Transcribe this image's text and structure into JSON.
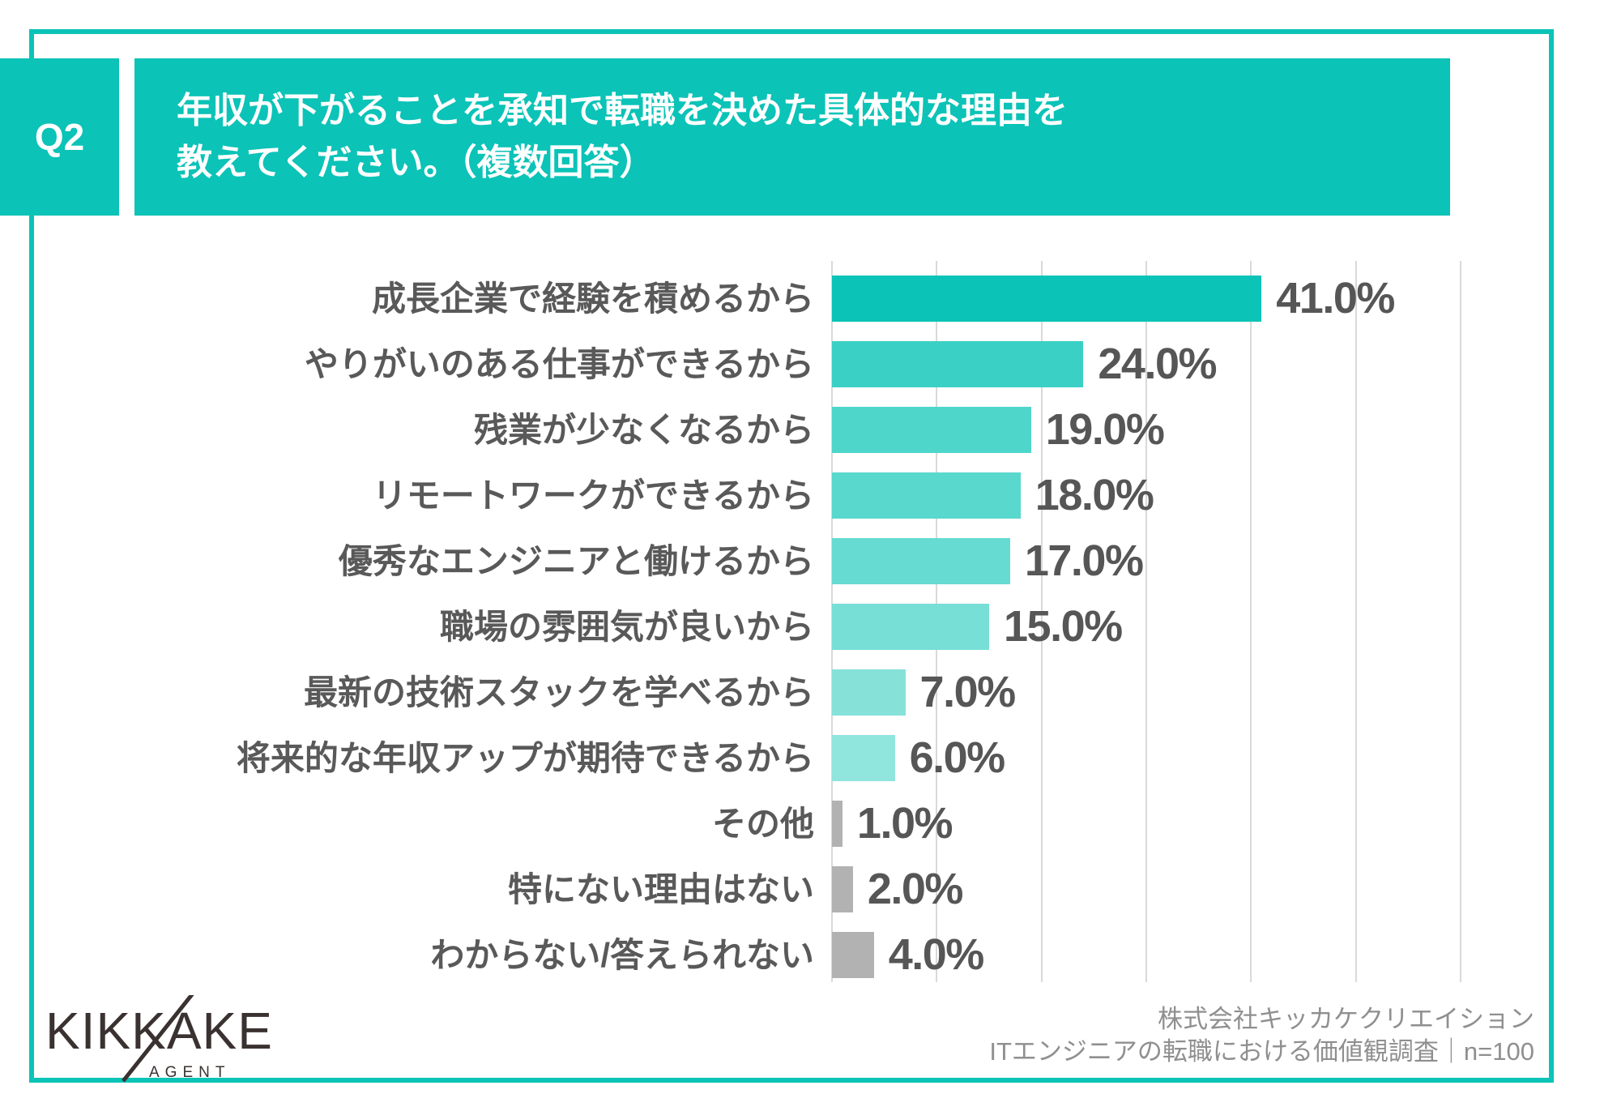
{
  "header": {
    "question_tag": "Q2",
    "title_line1": "年収が下がることを承知で転職を決めた具体的な理由を",
    "title_line2": "教えてください。（複数回答）"
  },
  "chart_data": {
    "type": "bar",
    "orientation": "horizontal",
    "title": "年収が下がることを承知で転職を決めた具体的な理由",
    "categories": [
      "成長企業で経験を積めるから",
      "やりがいのある仕事ができるから",
      "残業が少なくなるから",
      "リモートワークができるから",
      "優秀なエンジニアと働けるから",
      "職場の雰囲気が良いから",
      "最新の技術スタックを学べるから",
      "将来的な年収アップが期待できるから",
      "その他",
      "特にない理由はない",
      "わからない/答えられない"
    ],
    "values": [
      41.0,
      24.0,
      19.0,
      18.0,
      17.0,
      15.0,
      7.0,
      6.0,
      1.0,
      2.0,
      4.0
    ],
    "value_labels": [
      "41.0%",
      "24.0%",
      "19.0%",
      "18.0%",
      "17.0%",
      "15.0%",
      "7.0%",
      "6.0%",
      "1.0%",
      "2.0%",
      "4.0%"
    ],
    "axis": {
      "min": 0,
      "max": 60,
      "step": 10
    },
    "grid": true,
    "bar_colors": [
      "#0bc3b7",
      "#3ad0c5",
      "#4ed6cb",
      "#59d8ce",
      "#66dbd2",
      "#77dfd6",
      "#86e2d9",
      "#90e5dc",
      "#b2b2b2",
      "#b2b2b2",
      "#b2b2b2"
    ]
  },
  "footer": {
    "logo_text": "KIKKAKE",
    "logo_sub": "AGENT",
    "credit_line1": "株式会社キッカケクリエイション",
    "credit_line2": "ITエンジニアの転職における価値観調査｜n=100"
  },
  "colors": {
    "accent": "#0bc3b7",
    "grid": "#d9d9d9",
    "label": "#595959",
    "value": "#565656",
    "credit": "#8f8f8f",
    "logo": "#3a3230",
    "gray_bar": "#b2b2b2"
  }
}
